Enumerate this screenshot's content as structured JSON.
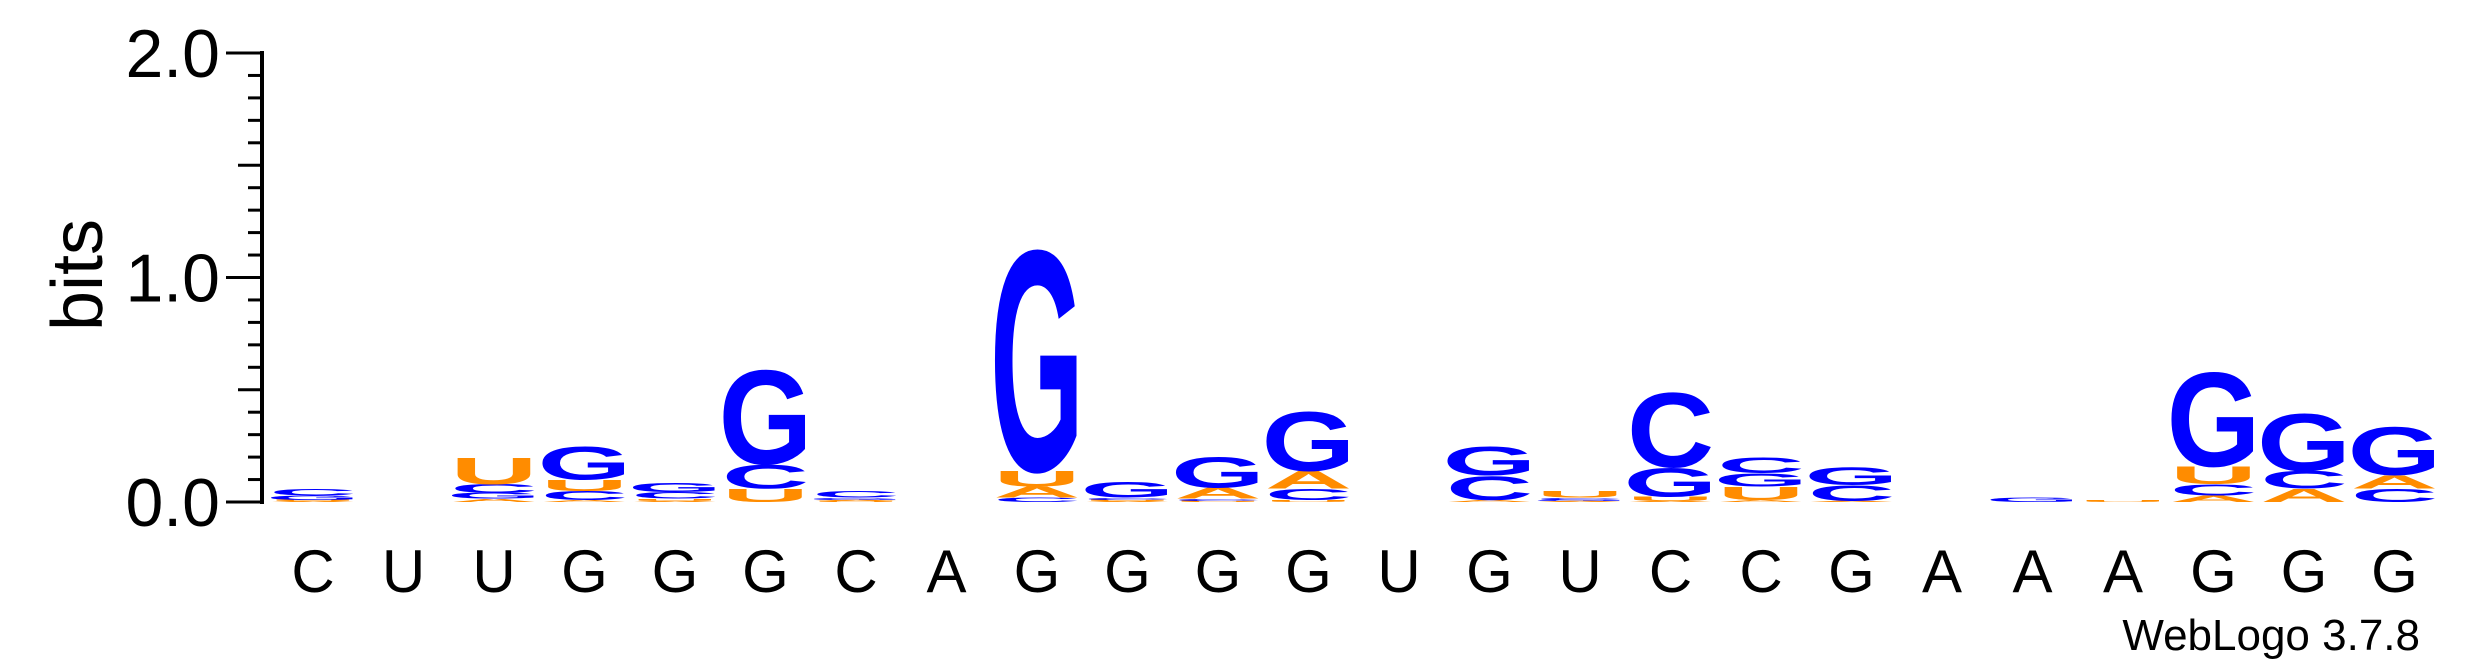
{
  "chart_data": {
    "type": "sequence-logo",
    "ylabel": "bits",
    "ylim": [
      0,
      2
    ],
    "yticks": [
      {
        "value": 0,
        "label": "0.0"
      },
      {
        "value": 1,
        "label": "1.0"
      },
      {
        "value": 2,
        "label": "2.0"
      }
    ],
    "x_tick_labels": [
      "C",
      "U",
      "U",
      "G",
      "G",
      "G",
      "C",
      "A",
      "G",
      "G",
      "G",
      "G",
      "U",
      "G",
      "U",
      "C",
      "C",
      "G",
      "A",
      "A",
      "A",
      "G",
      "G",
      "G"
    ],
    "colors": {
      "G": "#0000FF",
      "C": "#0000FF",
      "U": "#FF8C00",
      "A": "#FF8C00"
    },
    "columns": [
      {
        "stack": [
          {
            "letter": "A",
            "bits": 0.005
          },
          {
            "letter": "U",
            "bits": 0.005
          },
          {
            "letter": "G",
            "bits": 0.02
          },
          {
            "letter": "C",
            "bits": 0.03
          }
        ]
      },
      {
        "stack": []
      },
      {
        "stack": [
          {
            "letter": "A",
            "bits": 0.015
          },
          {
            "letter": "G",
            "bits": 0.025
          },
          {
            "letter": "C",
            "bits": 0.04
          },
          {
            "letter": "U",
            "bits": 0.12
          }
        ]
      },
      {
        "stack": [
          {
            "letter": "A",
            "bits": 0.01
          },
          {
            "letter": "C",
            "bits": 0.04
          },
          {
            "letter": "U",
            "bits": 0.05
          },
          {
            "letter": "G",
            "bits": 0.15
          }
        ]
      },
      {
        "stack": [
          {
            "letter": "A",
            "bits": 0.005
          },
          {
            "letter": "U",
            "bits": 0.01
          },
          {
            "letter": "C",
            "bits": 0.03
          },
          {
            "letter": "G",
            "bits": 0.04
          }
        ]
      },
      {
        "stack": [
          {
            "letter": "U",
            "bits": 0.06
          },
          {
            "letter": "C",
            "bits": 0.11
          },
          {
            "letter": "G",
            "bits": 0.43
          }
        ]
      },
      {
        "stack": [
          {
            "letter": "U",
            "bits": 0.005
          },
          {
            "letter": "A",
            "bits": 0.005
          },
          {
            "letter": "G",
            "bits": 0.01
          },
          {
            "letter": "C",
            "bits": 0.03
          }
        ]
      },
      {
        "stack": []
      },
      {
        "stack": [
          {
            "letter": "C",
            "bits": 0.02
          },
          {
            "letter": "A",
            "bits": 0.05
          },
          {
            "letter": "U",
            "bits": 0.07
          },
          {
            "letter": "G",
            "bits": 1.01
          }
        ]
      },
      {
        "stack": [
          {
            "letter": "A",
            "bits": 0.005
          },
          {
            "letter": "U",
            "bits": 0.005
          },
          {
            "letter": "C",
            "bits": 0.01
          },
          {
            "letter": "G",
            "bits": 0.07
          }
        ]
      },
      {
        "stack": [
          {
            "letter": "U",
            "bits": 0.005
          },
          {
            "letter": "C",
            "bits": 0.01
          },
          {
            "letter": "A",
            "bits": 0.05
          },
          {
            "letter": "G",
            "bits": 0.14
          }
        ]
      },
      {
        "stack": [
          {
            "letter": "U",
            "bits": 0.01
          },
          {
            "letter": "C",
            "bits": 0.05
          },
          {
            "letter": "A",
            "bits": 0.08
          },
          {
            "letter": "G",
            "bits": 0.27
          }
        ]
      },
      {
        "stack": []
      },
      {
        "stack": [
          {
            "letter": "A",
            "bits": 0.01
          },
          {
            "letter": "C",
            "bits": 0.11
          },
          {
            "letter": "G",
            "bits": 0.13
          }
        ]
      },
      {
        "stack": [
          {
            "letter": "A",
            "bits": 0.005
          },
          {
            "letter": "G",
            "bits": 0.005
          },
          {
            "letter": "C",
            "bits": 0.01
          },
          {
            "letter": "U",
            "bits": 0.03
          }
        ]
      },
      {
        "stack": [
          {
            "letter": "A",
            "bits": 0.005
          },
          {
            "letter": "U",
            "bits": 0.02
          },
          {
            "letter": "G",
            "bits": 0.13
          },
          {
            "letter": "C",
            "bits": 0.34
          }
        ]
      },
      {
        "stack": [
          {
            "letter": "A",
            "bits": 0.01
          },
          {
            "letter": "U",
            "bits": 0.06
          },
          {
            "letter": "G",
            "bits": 0.06
          },
          {
            "letter": "C",
            "bits": 0.07
          }
        ]
      },
      {
        "stack": [
          {
            "letter": "A",
            "bits": 0.005
          },
          {
            "letter": "C",
            "bits": 0.07
          },
          {
            "letter": "G",
            "bits": 0.08
          }
        ]
      },
      {
        "stack": []
      },
      {
        "stack": [
          {
            "letter": "G",
            "bits": 0.02
          }
        ]
      },
      {
        "stack": [
          {
            "letter": "U",
            "bits": 0.01
          }
        ]
      },
      {
        "stack": [
          {
            "letter": "A",
            "bits": 0.03
          },
          {
            "letter": "C",
            "bits": 0.05
          },
          {
            "letter": "U",
            "bits": 0.08
          },
          {
            "letter": "G",
            "bits": 0.43
          }
        ]
      },
      {
        "stack": [
          {
            "letter": "A",
            "bits": 0.06
          },
          {
            "letter": "C",
            "bits": 0.08
          },
          {
            "letter": "G",
            "bits": 0.26
          }
        ]
      },
      {
        "stack": [
          {
            "letter": "C",
            "bits": 0.06
          },
          {
            "letter": "A",
            "bits": 0.06
          },
          {
            "letter": "G",
            "bits": 0.22
          }
        ]
      }
    ]
  },
  "footer": {
    "credit": "WebLogo 3.7.8"
  }
}
